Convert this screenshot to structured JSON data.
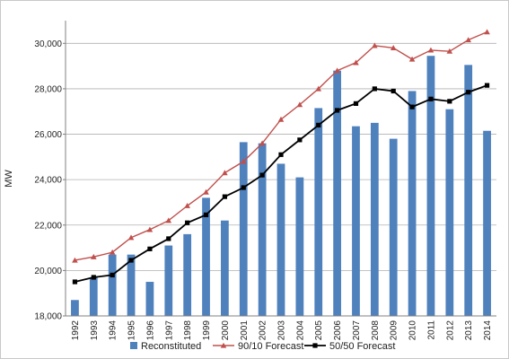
{
  "chart_data": {
    "type": "bar+line",
    "title": "",
    "xlabel": "",
    "ylabel": "MW",
    "ylim": [
      18000,
      31000
    ],
    "yticks": [
      18000,
      20000,
      22000,
      24000,
      26000,
      28000,
      30000
    ],
    "ytick_labels": [
      "18,000",
      "20,000",
      "22,000",
      "24,000",
      "26,000",
      "28,000",
      "30,000"
    ],
    "grid": true,
    "legend_position": "bottom",
    "categories": [
      "1992",
      "1993",
      "1994",
      "1995",
      "1996",
      "1997",
      "1998",
      "1999",
      "2000",
      "2001",
      "2002",
      "2003",
      "2004",
      "2005",
      "2006",
      "2007",
      "2008",
      "2009",
      "2010",
      "2011",
      "2012",
      "2013",
      "2014"
    ],
    "series": [
      {
        "name": "Reconstituted",
        "kind": "bar",
        "color": "#4f81bd",
        "values": [
          18700,
          19700,
          20700,
          20700,
          19500,
          21100,
          21600,
          23200,
          22200,
          25650,
          25600,
          24700,
          24100,
          27150,
          28800,
          26350,
          26500,
          25800,
          27900,
          29450,
          27100,
          29050,
          26150
        ]
      },
      {
        "name": "90/10 Forecast",
        "kind": "line",
        "marker": "triangle",
        "color": "#c0504d",
        "values": [
          20450,
          20600,
          20800,
          21450,
          21800,
          22200,
          22850,
          23450,
          24300,
          24800,
          25600,
          26650,
          27300,
          28000,
          28800,
          29150,
          29900,
          29800,
          29300,
          29700,
          29650,
          30150,
          30500
        ]
      },
      {
        "name": "50/50 Forecast",
        "kind": "line",
        "marker": "square",
        "color": "#000000",
        "values": [
          19500,
          19700,
          19800,
          20450,
          20950,
          21400,
          22100,
          22450,
          23250,
          23650,
          24200,
          25100,
          25750,
          26400,
          27050,
          27350,
          28000,
          27900,
          27200,
          27550,
          27450,
          27850,
          28150
        ]
      }
    ]
  }
}
